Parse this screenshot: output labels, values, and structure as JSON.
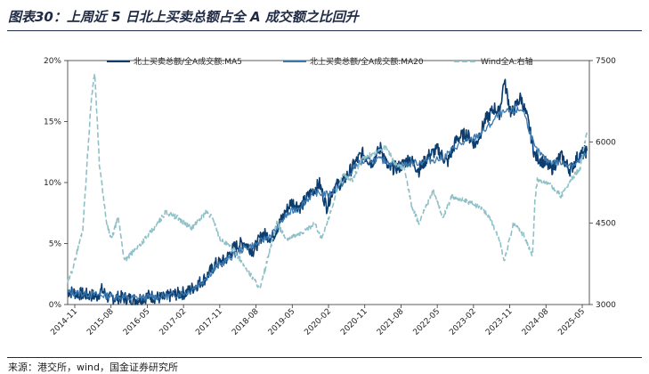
{
  "header": {
    "title": "图表30：上周近 5 日北上买卖总额占全 A 成交额之比回升"
  },
  "footer": {
    "source": "来源：港交所，wind，国金证券研究所"
  },
  "colors": {
    "ma5": "#0c3d6e",
    "ma20": "#3a78b0",
    "wind": "#8fc0c8",
    "axis": "#333333"
  },
  "chart_data": {
    "type": "line",
    "title": "图表30：上周近 5 日北上买卖总额占全 A 成交额之比回升",
    "legend": {
      "placement": "top",
      "entries": [
        "北上买卖总额/全A成交额:MA5",
        "北上买卖总额/全A成交额:MA20",
        "Wind全A:右轴"
      ]
    },
    "x_ticks": [
      "2014-11",
      "2015-08",
      "2016-05",
      "2017-02",
      "2017-11",
      "2018-08",
      "2019-05",
      "2020-02",
      "2020-11",
      "2021-08",
      "2022-05",
      "2023-02",
      "2023-11",
      "2024-08",
      "2025-05"
    ],
    "y_left": {
      "ticks": [
        "0%",
        "5%",
        "10%",
        "15%",
        "20%"
      ],
      "min": 0,
      "max": 20
    },
    "y_right": {
      "ticks": [
        "3000",
        "4500",
        "6000",
        "7500"
      ],
      "min": 3000,
      "max": 7500
    },
    "series": [
      {
        "name": "北上买卖总额/全A成交额:MA5",
        "axis": "left",
        "anchors": [
          [
            2014.88,
            1.1
          ],
          [
            2015.1,
            0.9
          ],
          [
            2015.3,
            0.8
          ],
          [
            2015.5,
            0.7
          ],
          [
            2015.6,
            1.2
          ],
          [
            2015.75,
            0.5
          ],
          [
            2016.0,
            0.6
          ],
          [
            2016.3,
            0.4
          ],
          [
            2016.6,
            0.7
          ],
          [
            2016.9,
            0.5
          ],
          [
            2017.1,
            0.8
          ],
          [
            2017.4,
            1.0
          ],
          [
            2017.6,
            1.6
          ],
          [
            2017.8,
            2.2
          ],
          [
            2018.0,
            3.3
          ],
          [
            2018.2,
            3.6
          ],
          [
            2018.4,
            4.7
          ],
          [
            2018.6,
            5.1
          ],
          [
            2018.8,
            4.4
          ],
          [
            2019.0,
            5.8
          ],
          [
            2019.2,
            5.5
          ],
          [
            2019.4,
            7.0
          ],
          [
            2019.6,
            8.4
          ],
          [
            2019.8,
            8.0
          ],
          [
            2020.0,
            9.1
          ],
          [
            2020.2,
            9.9
          ],
          [
            2020.35,
            8.0
          ],
          [
            2020.5,
            9.6
          ],
          [
            2020.7,
            10.1
          ],
          [
            2020.9,
            11.3
          ],
          [
            2021.1,
            12.4
          ],
          [
            2021.3,
            11.6
          ],
          [
            2021.5,
            12.9
          ],
          [
            2021.65,
            11.1
          ],
          [
            2021.9,
            11.3
          ],
          [
            2022.1,
            12.0
          ],
          [
            2022.3,
            11.0
          ],
          [
            2022.5,
            12.2
          ],
          [
            2022.7,
            12.7
          ],
          [
            2022.9,
            11.6
          ],
          [
            2023.1,
            13.6
          ],
          [
            2023.3,
            14.0
          ],
          [
            2023.5,
            13.1
          ],
          [
            2023.7,
            15.1
          ],
          [
            2023.9,
            16.1
          ],
          [
            2024.0,
            15.7
          ],
          [
            2024.1,
            18.4
          ],
          [
            2024.25,
            15.6
          ],
          [
            2024.45,
            17.0
          ],
          [
            2024.6,
            15.1
          ],
          [
            2024.75,
            12.2
          ],
          [
            2024.9,
            11.8
          ],
          [
            2025.1,
            11.1
          ],
          [
            2025.3,
            12.2
          ],
          [
            2025.5,
            11.0
          ],
          [
            2025.65,
            12.1
          ],
          [
            2025.85,
            12.6
          ]
        ]
      },
      {
        "name": "北上买卖总额/全A成交额:MA20",
        "axis": "left",
        "anchors": [
          [
            2014.88,
            1.0
          ],
          [
            2015.2,
            0.9
          ],
          [
            2015.5,
            0.8
          ],
          [
            2015.8,
            0.7
          ],
          [
            2016.2,
            0.5
          ],
          [
            2016.6,
            0.6
          ],
          [
            2017.0,
            0.7
          ],
          [
            2017.4,
            1.0
          ],
          [
            2017.7,
            1.8
          ],
          [
            2018.0,
            3.0
          ],
          [
            2018.3,
            3.8
          ],
          [
            2018.6,
            4.6
          ],
          [
            2018.9,
            5.0
          ],
          [
            2019.2,
            5.8
          ],
          [
            2019.5,
            7.3
          ],
          [
            2019.8,
            8.1
          ],
          [
            2020.1,
            9.2
          ],
          [
            2020.4,
            9.0
          ],
          [
            2020.7,
            10.0
          ],
          [
            2021.0,
            11.5
          ],
          [
            2021.3,
            11.9
          ],
          [
            2021.6,
            11.8
          ],
          [
            2021.9,
            11.4
          ],
          [
            2022.2,
            11.6
          ],
          [
            2022.5,
            11.8
          ],
          [
            2022.8,
            12.0
          ],
          [
            2023.1,
            13.0
          ],
          [
            2023.4,
            13.5
          ],
          [
            2023.7,
            14.3
          ],
          [
            2024.0,
            15.6
          ],
          [
            2024.2,
            15.8
          ],
          [
            2024.5,
            16.0
          ],
          [
            2024.75,
            12.8
          ],
          [
            2025.0,
            11.8
          ],
          [
            2025.3,
            11.6
          ],
          [
            2025.6,
            11.5
          ],
          [
            2025.85,
            12.4
          ]
        ]
      },
      {
        "name": "Wind全A:右轴",
        "axis": "right",
        "dash": true,
        "anchors": [
          [
            2014.88,
            3400
          ],
          [
            2015.0,
            3700
          ],
          [
            2015.2,
            4400
          ],
          [
            2015.38,
            6800
          ],
          [
            2015.45,
            7300
          ],
          [
            2015.55,
            5600
          ],
          [
            2015.7,
            4500
          ],
          [
            2015.8,
            4200
          ],
          [
            2015.95,
            4600
          ],
          [
            2016.08,
            3800
          ],
          [
            2016.4,
            4100
          ],
          [
            2016.7,
            4400
          ],
          [
            2016.95,
            4700
          ],
          [
            2017.2,
            4600
          ],
          [
            2017.5,
            4400
          ],
          [
            2017.8,
            4700
          ],
          [
            2017.95,
            4600
          ],
          [
            2018.1,
            4200
          ],
          [
            2018.4,
            4000
          ],
          [
            2018.7,
            3600
          ],
          [
            2018.95,
            3300
          ],
          [
            2019.15,
            4000
          ],
          [
            2019.3,
            4500
          ],
          [
            2019.5,
            4200
          ],
          [
            2019.8,
            4300
          ],
          [
            2020.1,
            4500
          ],
          [
            2020.25,
            4200
          ],
          [
            2020.5,
            4900
          ],
          [
            2020.7,
            5400
          ],
          [
            2020.9,
            5300
          ],
          [
            2021.1,
            5700
          ],
          [
            2021.4,
            5800
          ],
          [
            2021.6,
            5900
          ],
          [
            2021.8,
            5600
          ],
          [
            2022.0,
            5500
          ],
          [
            2022.15,
            4800
          ],
          [
            2022.3,
            4500
          ],
          [
            2022.6,
            5100
          ],
          [
            2022.8,
            4600
          ],
          [
            2023.0,
            5000
          ],
          [
            2023.3,
            4900
          ],
          [
            2023.6,
            4800
          ],
          [
            2023.8,
            4600
          ],
          [
            2024.0,
            4200
          ],
          [
            2024.1,
            3800
          ],
          [
            2024.3,
            4500
          ],
          [
            2024.5,
            4300
          ],
          [
            2024.7,
            3900
          ],
          [
            2024.75,
            4900
          ],
          [
            2024.8,
            5300
          ],
          [
            2025.1,
            5200
          ],
          [
            2025.3,
            5000
          ],
          [
            2025.5,
            5300
          ],
          [
            2025.7,
            5500
          ],
          [
            2025.85,
            6200
          ]
        ]
      }
    ]
  }
}
